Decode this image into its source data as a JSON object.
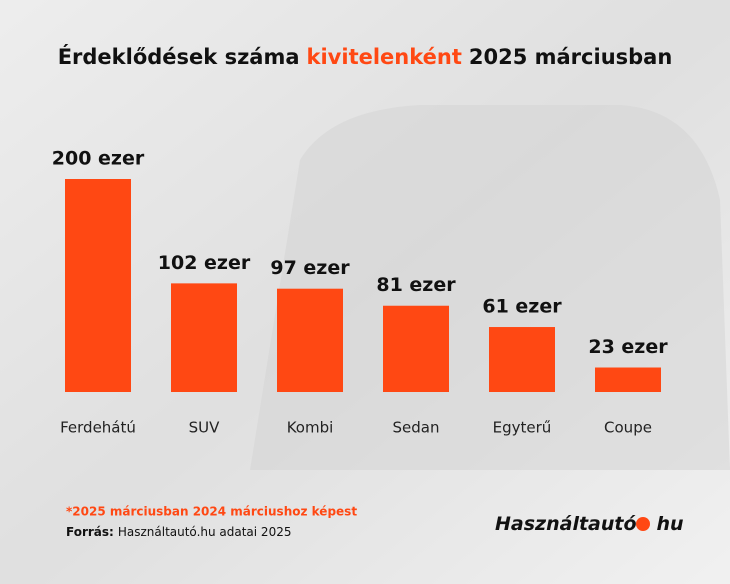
{
  "chart_data": {
    "type": "bar",
    "title": [
      "Érdeklődések száma",
      "kivitelenként",
      "2025 márciusban"
    ],
    "categories": [
      "Ferdehátú",
      "SUV",
      "Kombi",
      "Sedan",
      "Egyterű",
      "Coupe"
    ],
    "values": [
      200,
      102,
      97,
      81,
      61,
      23
    ],
    "value_labels": [
      "200 ezer",
      "102 ezer",
      "97 ezer",
      "81 ezer",
      "61 ezer",
      "23 ezer"
    ],
    "color": "#ff4813",
    "footnote": "*2025 márciusban 2024 márciushoz képest",
    "source_label": "Forrás:",
    "source": "Használtautó.hu adatai 2025",
    "logo": [
      "Használtautó",
      "hu"
    ]
  }
}
